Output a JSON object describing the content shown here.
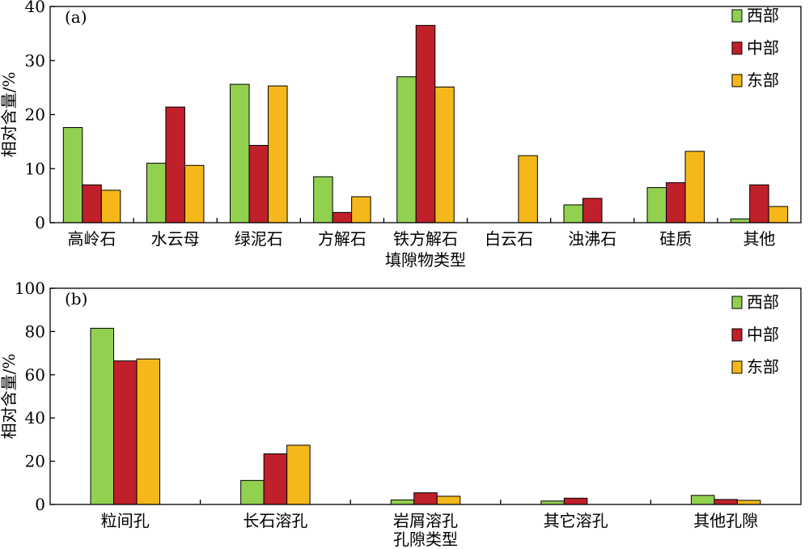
{
  "legend": {
    "colors": [
      "#92d050",
      "#c0202a",
      "#f5b81b"
    ]
  },
  "chart_data": [
    {
      "type": "bar",
      "panel_label": "(a)",
      "xlabel": "填隙物类型",
      "ylabel": "相对含量/%",
      "ylim": [
        0,
        40
      ],
      "yticks": [
        0,
        10,
        20,
        30,
        40
      ],
      "legend_position": "top-right",
      "grid": false,
      "categories": [
        "高岭石",
        "水云母",
        "绿泥石",
        "方解石",
        "铁方解石",
        "白云石",
        "浊沸石",
        "硅质",
        "其他"
      ],
      "series": [
        {
          "name": "西部",
          "color": "#92d050",
          "values": [
            17.6,
            11.0,
            25.6,
            8.5,
            27.0,
            0,
            3.3,
            6.5,
            0.7
          ]
        },
        {
          "name": "中部",
          "color": "#c0202a",
          "values": [
            7.0,
            21.4,
            14.3,
            1.9,
            36.5,
            0,
            4.5,
            7.4,
            7.0
          ]
        },
        {
          "name": "东部",
          "color": "#f5b81b",
          "values": [
            6.0,
            10.6,
            25.3,
            4.8,
            25.1,
            12.4,
            0,
            13.2,
            3.0
          ]
        }
      ]
    },
    {
      "type": "bar",
      "panel_label": "(b)",
      "xlabel": "孔隙类型",
      "ylabel": "相对含量/%",
      "ylim": [
        0,
        100
      ],
      "yticks": [
        0,
        20,
        40,
        60,
        80,
        100
      ],
      "legend_position": "top-right",
      "grid": false,
      "categories": [
        "粒间孔",
        "长石溶孔",
        "岩屑溶孔",
        "其它溶孔",
        "其他孔隙"
      ],
      "series": [
        {
          "name": "西部",
          "color": "#92d050",
          "values": [
            81.5,
            11.1,
            2.1,
            1.6,
            4.2
          ]
        },
        {
          "name": "中部",
          "color": "#c0202a",
          "values": [
            66.4,
            23.4,
            5.4,
            2.9,
            2.3
          ]
        },
        {
          "name": "东部",
          "color": "#f5b81b",
          "values": [
            67.3,
            27.4,
            3.8,
            0,
            1.9
          ]
        }
      ]
    }
  ]
}
